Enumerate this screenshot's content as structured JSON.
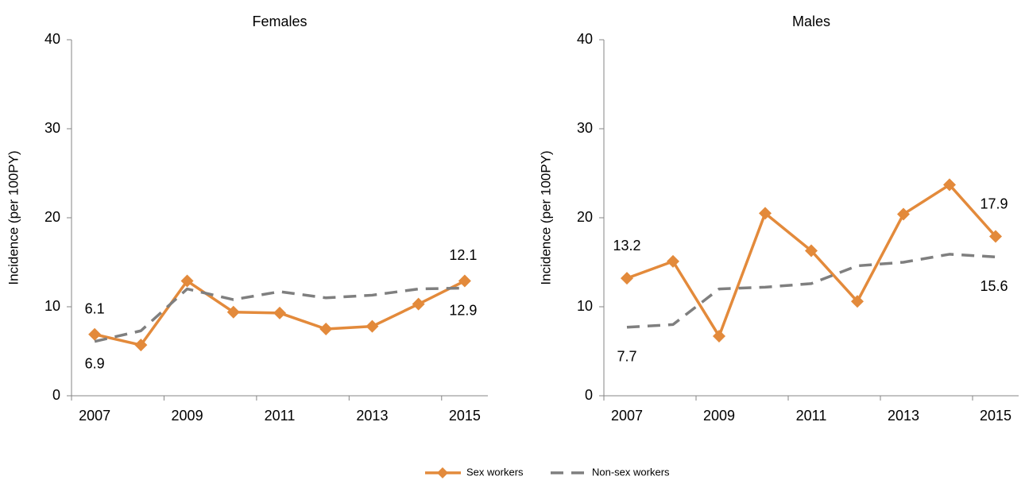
{
  "chart_data": [
    {
      "type": "line",
      "title": "Females",
      "y_label": "Incidence (per 100PY)",
      "categories": [
        "2007",
        null,
        "2009",
        null,
        "2011",
        null,
        "2013",
        null,
        "2015"
      ],
      "series": [
        {
          "name": "Sex workers",
          "color": "#E38A3B",
          "line_style": "solid",
          "marker": "diamond",
          "values": [
            6.9,
            5.7,
            12.9,
            9.4,
            9.3,
            7.5,
            7.8,
            10.3,
            12.9
          ]
        },
        {
          "name": "Non-sex workers",
          "color": "#7F7F7F",
          "line_style": "dashed",
          "values": [
            6.1,
            7.3,
            12.0,
            10.8,
            11.7,
            11.0,
            11.3,
            12.0,
            12.1
          ]
        }
      ],
      "ylim": [
        0,
        40
      ],
      "yticks": [
        0,
        10,
        20,
        30,
        40
      ]
    },
    {
      "type": "line",
      "title": "Males",
      "y_label": "Incidence (per 100PY)",
      "categories": [
        "2007",
        null,
        "2009",
        null,
        "2011",
        null,
        "2013",
        null,
        "2015"
      ],
      "series": [
        {
          "name": "Sex workers",
          "color": "#E38A3B",
          "line_style": "solid",
          "marker": "diamond",
          "values": [
            13.2,
            15.1,
            6.7,
            20.5,
            16.3,
            10.6,
            20.4,
            23.7,
            17.9
          ]
        },
        {
          "name": "Non-sex workers",
          "color": "#7F7F7F",
          "line_style": "dashed",
          "values": [
            7.7,
            8.0,
            12.0,
            12.2,
            12.6,
            14.6,
            15.0,
            15.9,
            15.6
          ]
        }
      ],
      "ylim": [
        0,
        40
      ],
      "yticks": [
        0,
        10,
        20,
        30,
        40
      ]
    }
  ]
}
